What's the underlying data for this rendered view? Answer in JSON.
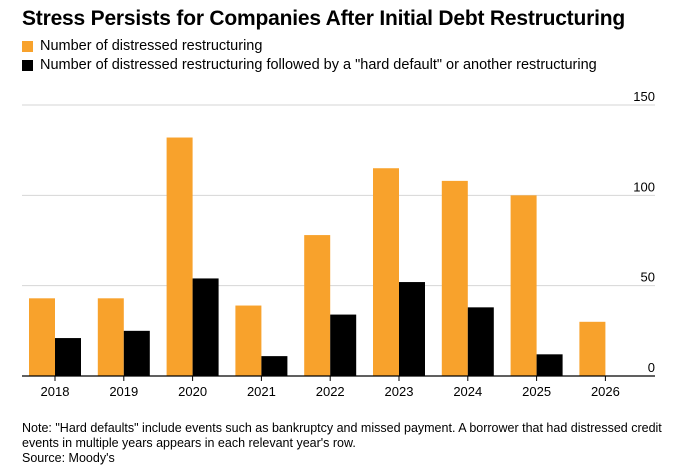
{
  "chart_data": {
    "type": "bar",
    "title": "Stress Persists for Companies After Initial Debt Restructuring",
    "categories": [
      "2018",
      "2019",
      "2020",
      "2021",
      "2022",
      "2023",
      "2024",
      "2025",
      "2026"
    ],
    "series": [
      {
        "name": "Number of distressed restructuring",
        "color": "#f8a22c",
        "values": [
          43,
          43,
          132,
          39,
          78,
          115,
          108,
          100,
          30
        ]
      },
      {
        "name": "Number of distressed restructuring followed by a \"hard default\" or another restructuring",
        "color": "#000000",
        "values": [
          21,
          25,
          54,
          11,
          34,
          52,
          38,
          12,
          null
        ]
      }
    ],
    "ylim": [
      0,
      150
    ],
    "yticks": [
      0,
      50,
      100,
      150
    ],
    "ytick_labels": [
      "0",
      "50",
      "100",
      "150"
    ],
    "xlabel": "",
    "ylabel": "",
    "grid": true,
    "legend_position": "top-left",
    "y_axis_side": "right"
  },
  "footnote": {
    "note": "Note: \"Hard defaults\" include events such as bankruptcy and missed payment. A borrower that had distressed credit events in multiple years appears in each relevant year's row.",
    "source": "Source: Moody's"
  }
}
